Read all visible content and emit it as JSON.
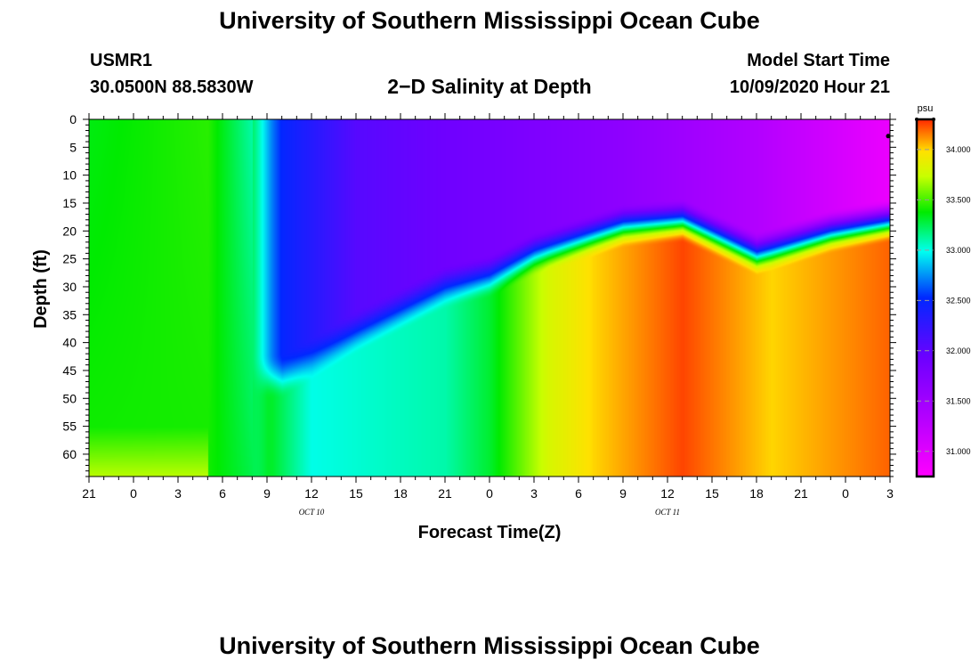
{
  "page": {
    "top_title": "University of Southern Mississippi Ocean Cube",
    "bottom_title": "University of Southern Mississippi Ocean Cube",
    "station_id": "USMR1",
    "coordinates": "30.0500N 88.5830W",
    "model_start_label": "Model Start Time",
    "model_start_value": "10/09/2020 Hour 21"
  },
  "chart_data": {
    "type": "heatmap",
    "title": "2−D Salinity at Depth",
    "xlabel": "Forecast Time(Z)",
    "ylabel": "Depth (ft)",
    "x_range_hours": [
      0,
      54
    ],
    "ylim": [
      0,
      64
    ],
    "x_ticks": [
      {
        "hour": 0,
        "label": "21"
      },
      {
        "hour": 3,
        "label": "0"
      },
      {
        "hour": 6,
        "label": "3"
      },
      {
        "hour": 9,
        "label": "6"
      },
      {
        "hour": 12,
        "label": "9"
      },
      {
        "hour": 15,
        "label": "12"
      },
      {
        "hour": 18,
        "label": "15"
      },
      {
        "hour": 21,
        "label": "18"
      },
      {
        "hour": 24,
        "label": "21"
      },
      {
        "hour": 27,
        "label": "0"
      },
      {
        "hour": 30,
        "label": "3"
      },
      {
        "hour": 33,
        "label": "6"
      },
      {
        "hour": 36,
        "label": "9"
      },
      {
        "hour": 39,
        "label": "12"
      },
      {
        "hour": 42,
        "label": "15"
      },
      {
        "hour": 45,
        "label": "18"
      },
      {
        "hour": 48,
        "label": "21"
      },
      {
        "hour": 51,
        "label": "0"
      },
      {
        "hour": 54,
        "label": "3"
      }
    ],
    "date_labels": [
      {
        "hour": 15,
        "label": "OCT 10"
      },
      {
        "hour": 39,
        "label": "OCT 11"
      }
    ],
    "y_ticks": [
      0,
      5,
      10,
      15,
      20,
      25,
      30,
      35,
      40,
      45,
      50,
      55,
      60
    ],
    "colorbar": {
      "unit": "psu",
      "min": 30.75,
      "max": 34.3,
      "ticks": [
        "31.000",
        "31.500",
        "32.000",
        "32.500",
        "33.000",
        "33.500",
        "34.000"
      ],
      "tick_values": [
        31.0,
        31.5,
        32.0,
        32.5,
        33.0,
        33.5,
        34.0
      ]
    },
    "surface_layer_salinity": [
      {
        "hour": 0,
        "value": 33.35
      },
      {
        "hour": 8,
        "value": 33.45
      },
      {
        "hour": 11,
        "value": 33.1
      },
      {
        "hour": 13,
        "value": 32.5
      },
      {
        "hour": 18,
        "value": 32.05
      },
      {
        "hour": 27,
        "value": 31.85
      },
      {
        "hour": 36,
        "value": 31.65
      },
      {
        "hour": 45,
        "value": 31.35
      },
      {
        "hour": 54,
        "value": 30.9
      }
    ],
    "halocline_depth_ft": [
      {
        "hour": 13,
        "value": 46
      },
      {
        "hour": 18,
        "value": 38
      },
      {
        "hour": 24,
        "value": 30
      },
      {
        "hour": 27,
        "value": 28
      },
      {
        "hour": 30,
        "value": 24
      },
      {
        "hour": 36,
        "value": 19
      },
      {
        "hour": 40,
        "value": 18
      },
      {
        "hour": 45,
        "value": 24
      },
      {
        "hour": 50,
        "value": 20
      },
      {
        "hour": 54,
        "value": 18
      }
    ],
    "bottom_layer_salinity": [
      {
        "hour": 0,
        "value": 33.45
      },
      {
        "hour": 12,
        "value": 33.35
      },
      {
        "hour": 15,
        "value": 33.0
      },
      {
        "hour": 24,
        "value": 33.1
      },
      {
        "hour": 27,
        "value": 33.3
      },
      {
        "hour": 31,
        "value": 33.8
      },
      {
        "hour": 34,
        "value": 34.0
      },
      {
        "hour": 40,
        "value": 34.25
      },
      {
        "hour": 46,
        "value": 34.0
      },
      {
        "hour": 54,
        "value": 34.2
      }
    ]
  }
}
